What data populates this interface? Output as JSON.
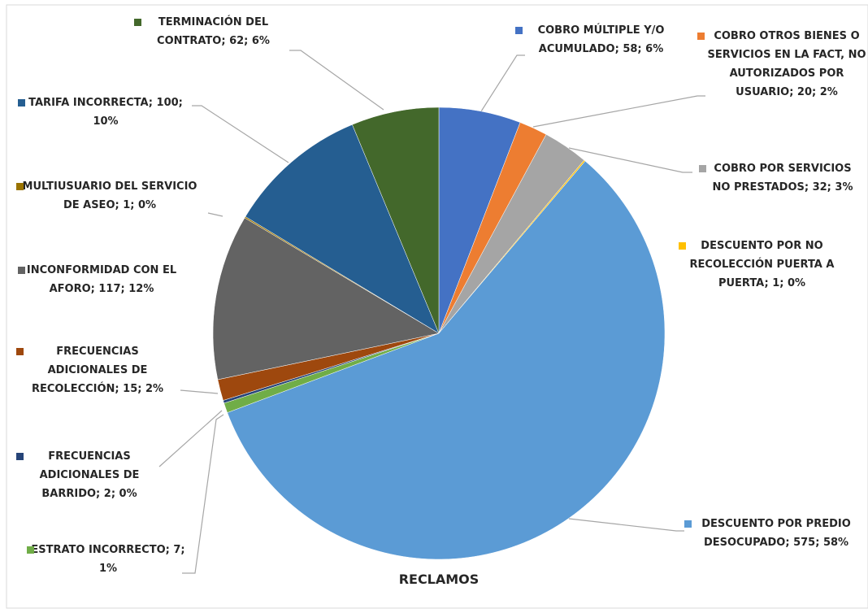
{
  "chart_data": {
    "type": "pie",
    "title": "RECLAMOS",
    "values": [
      58,
      20,
      32,
      1,
      575,
      7,
      2,
      15,
      117,
      1,
      100,
      62
    ],
    "value_labels": [
      "COBRO MÚLTIPLE Y/O ACUMULADO; 58; 6%",
      "COBRO OTROS BIENES O SERVICIOS EN LA FACT, NO AUTORIZADOS POR USUARIO; 20; 2%",
      "COBRO POR SERVICIOS NO PRESTADOS; 32; 3%",
      "DESCUENTO POR NO RECOLECCIÓN PUERTA A PUERTA; 1; 0%",
      "DESCUENTO POR PREDIO DESOCUPADO; 575; 58%",
      "ESTRATO INCORRECTO; 7; 1%",
      "FRECUENCIAS ADICIONALES DE BARRIDO; 2; 0%",
      "FRECUENCIAS ADICIONALES DE RECOLECCIÓN; 15; 2%",
      "INCONFORMIDAD CON EL AFORO; 117; 12%",
      "MULTIUSUARIO DEL SERVICIO DE ASEO; 1; 0%",
      "TARIFA INCORRECTA; 100; 10%",
      "TERMINACIÓN DEL CONTRATO; 62; 6%"
    ],
    "colors": [
      "#4472c4",
      "#ed7d31",
      "#a5a5a5",
      "#ffc000",
      "#5b9bd5",
      "#70ad47",
      "#264478",
      "#9e480e",
      "#636363",
      "#997300",
      "#255e91",
      "#43682b"
    ]
  }
}
